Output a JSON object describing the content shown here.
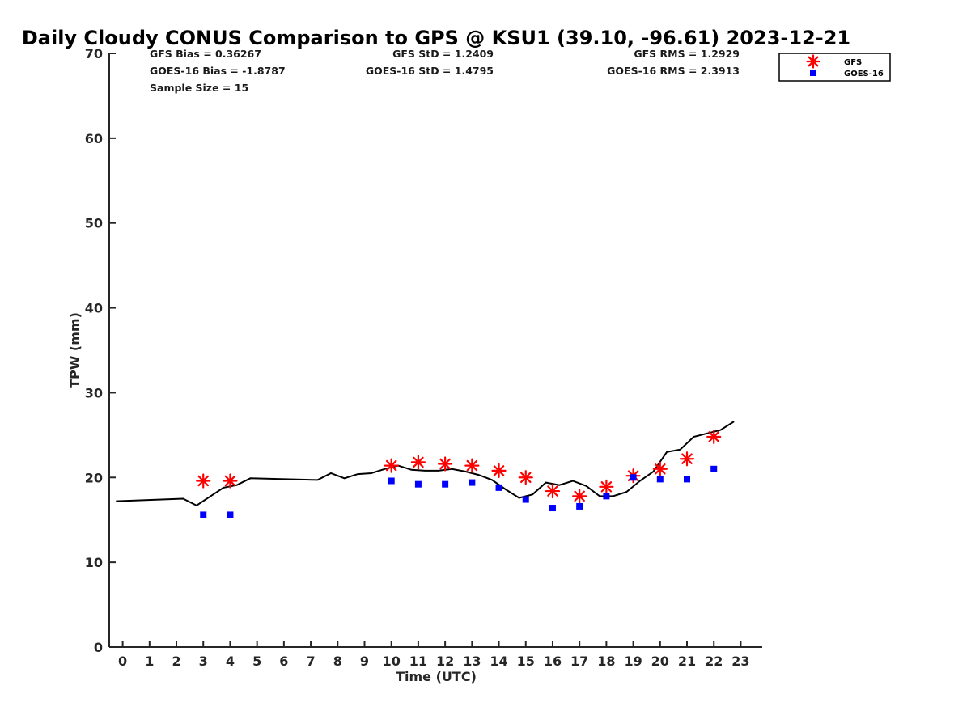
{
  "chart_data": {
    "type": "scatter",
    "title": "Daily Cloudy CONUS Comparison to GPS @ KSU1 (39.10, -96.61) 2023-12-21",
    "xlabel": "Time (UTC)",
    "ylabel": "TPW (mm)",
    "xlim": [
      -0.5,
      23.8
    ],
    "ylim": [
      0,
      70
    ],
    "xticks": [
      0,
      1,
      2,
      3,
      4,
      5,
      6,
      7,
      8,
      9,
      10,
      11,
      12,
      13,
      14,
      15,
      16,
      17,
      18,
      19,
      20,
      21,
      22,
      23
    ],
    "yticks": [
      0,
      10,
      20,
      30,
      40,
      50,
      60,
      70
    ],
    "grid": false,
    "legend_position": "top-right",
    "stats": {
      "gfs_bias": "GFS Bias = 0.36267",
      "goes_bias": "GOES-16 Bias = -1.8787",
      "sample_size": "Sample Size = 15",
      "gfs_std": "GFS StD = 1.2409",
      "goes_std": "GOES-16 StD = 1.4795",
      "gfs_rms": "GFS RMS = 1.2929",
      "goes_rms": "GOES-16 RMS = 2.3913"
    },
    "series": [
      {
        "type": "line",
        "color": "#000000",
        "x": [
          -0.25,
          2.25,
          2.75,
          3.75,
          4.25,
          4.75,
          7.25,
          7.75,
          8.25,
          8.75,
          9.25,
          9.75,
          10.25,
          10.75,
          11.25,
          11.75,
          12.25,
          12.75,
          13.25,
          13.75,
          14.25,
          14.75,
          15.25,
          15.75,
          16.25,
          16.75,
          17.25,
          17.75,
          18.25,
          18.75,
          19.25,
          19.75,
          20.25,
          20.75,
          21.25,
          21.75,
          22.25,
          22.75
        ],
        "y": [
          17.2,
          17.5,
          16.7,
          18.8,
          19.1,
          19.9,
          19.7,
          20.5,
          19.9,
          20.4,
          20.5,
          21.0,
          21.4,
          20.9,
          20.8,
          20.8,
          21.0,
          20.7,
          20.3,
          19.7,
          18.6,
          17.6,
          18.0,
          19.4,
          19.1,
          19.6,
          19.0,
          17.8,
          17.8,
          18.3,
          19.6,
          20.7,
          23.0,
          23.3,
          24.8,
          25.2,
          25.6,
          26.6
        ]
      },
      {
        "name": "GFS",
        "marker": "asterisk",
        "color": "#ff0000",
        "x": [
          3,
          4,
          10,
          11,
          12,
          13,
          14,
          15,
          16,
          17,
          18,
          19,
          20,
          21,
          22
        ],
        "y": [
          19.6,
          19.6,
          21.4,
          21.8,
          21.6,
          21.4,
          20.8,
          20.0,
          18.4,
          17.8,
          18.9,
          20.2,
          21.0,
          22.2,
          24.8
        ]
      },
      {
        "name": "GOES-16",
        "marker": "square",
        "color": "#0000ff",
        "x": [
          3,
          4,
          10,
          11,
          12,
          13,
          14,
          15,
          16,
          17,
          18,
          19,
          20,
          21,
          22
        ],
        "y": [
          15.6,
          15.6,
          19.6,
          19.2,
          19.2,
          19.4,
          18.8,
          17.4,
          16.4,
          16.6,
          17.8,
          20.0,
          19.8,
          19.8,
          21.0
        ]
      }
    ]
  }
}
